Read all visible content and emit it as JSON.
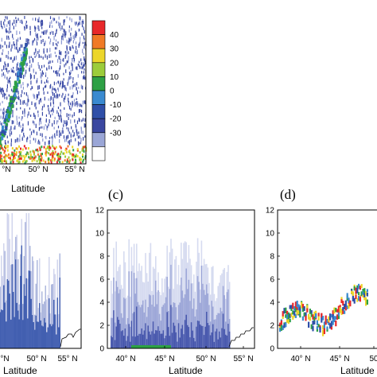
{
  "chart_data": [
    {
      "type": "heatmap",
      "panel_label": "",
      "xlabel": "Latitude",
      "x_ticks": [
        "°N",
        "50° N",
        "55° N"
      ],
      "colorbar": {
        "ticks": [
          "40",
          "30",
          "20",
          "10",
          "0",
          "-10",
          "-20",
          "-30"
        ],
        "colors": [
          "#e8282a",
          "#f07a26",
          "#ecd62a",
          "#9ccc3a",
          "#2da045",
          "#3a8ad0",
          "#2f4fa8",
          "#3a47a0",
          "#9aa6d6",
          "#ffffff"
        ]
      }
    },
    {
      "type": "heatmap",
      "panel_label": "",
      "xlabel": "Latitude",
      "x_ticks": [
        "°N",
        "50° N",
        "55° N"
      ]
    },
    {
      "type": "heatmap",
      "panel_label": "(c)",
      "xlabel": "Latitude",
      "x_ticks": [
        "40° N",
        "45° N",
        "50° N",
        "55° N"
      ],
      "y_ticks": [
        "0",
        "2",
        "4",
        "6",
        "8",
        "10",
        "12"
      ],
      "ylim": [
        0,
        12
      ]
    },
    {
      "type": "heatmap",
      "panel_label": "(d)",
      "xlabel": "Latitude",
      "x_ticks": [
        "40° N",
        "45° N",
        "50"
      ],
      "y_ticks": [
        "0",
        "2",
        "4",
        "6",
        "8",
        "10",
        "12"
      ],
      "ylim": [
        0,
        12
      ]
    }
  ]
}
